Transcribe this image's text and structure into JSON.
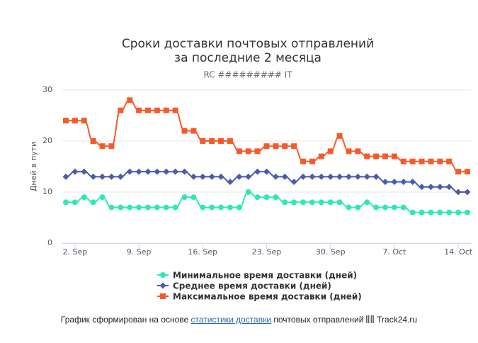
{
  "chart_data": {
    "type": "line",
    "title": [
      "Сроки доставки почтовых отправлений",
      "за последние 2 месяца"
    ],
    "subtitle": "RC ######### IT",
    "y_axis_label": "Дней в пути",
    "categories": [
      null,
      "2. Sep",
      null,
      null,
      null,
      null,
      null,
      null,
      "9. Sep",
      null,
      null,
      null,
      null,
      null,
      null,
      "16. Sep",
      null,
      null,
      null,
      null,
      null,
      null,
      "23. Sep",
      null,
      null,
      null,
      null,
      null,
      null,
      "30. Sep",
      null,
      null,
      null,
      null,
      null,
      null,
      "7. Oct",
      null,
      null,
      null,
      null,
      null,
      null,
      "14. Oct",
      null
    ],
    "series": [
      {
        "name": "Минимальное время доставки (дней)",
        "color": "#2ee8b6",
        "marker": "circle",
        "values": [
          8,
          8,
          9,
          8,
          9,
          7,
          7,
          7,
          7,
          7,
          7,
          7,
          7,
          9,
          9,
          7,
          7,
          7,
          7,
          7,
          10,
          9,
          9,
          9,
          8,
          8,
          8,
          8,
          8,
          8,
          8,
          7,
          7,
          8,
          7,
          7,
          7,
          7,
          6,
          6,
          6,
          6,
          6,
          6,
          6
        ]
      },
      {
        "name": "Среднее время доставки (дней)",
        "color": "#4a5cab",
        "marker": "diamond",
        "values": [
          13,
          14,
          14,
          13,
          13,
          13,
          13,
          14,
          14,
          14,
          14,
          14,
          14,
          14,
          13,
          13,
          13,
          13,
          12,
          13,
          13,
          14,
          14,
          13,
          13,
          12,
          13,
          13,
          13,
          13,
          13,
          13,
          13,
          13,
          13,
          12,
          12,
          12,
          12,
          11,
          11,
          11,
          11,
          10,
          10
        ]
      },
      {
        "name": "Максимальное время доставки (дней)",
        "color": "#f45b2a",
        "marker": "square",
        "values": [
          24,
          24,
          24,
          20,
          19,
          19,
          26,
          28,
          26,
          26,
          26,
          26,
          26,
          22,
          22,
          20,
          20,
          20,
          20,
          18,
          18,
          18,
          19,
          19,
          19,
          19,
          16,
          16,
          17,
          18,
          21,
          18,
          18,
          17,
          17,
          17,
          17,
          16,
          16,
          16,
          16,
          16,
          16,
          14,
          14
        ]
      }
    ],
    "ylim": [
      0,
      30
    ],
    "yticks": [
      0,
      10,
      20,
      30
    ],
    "grid": true
  },
  "footer": {
    "before": "График сформирован на основе",
    "link": "статистики доставки",
    "after": "почтовых отправлений",
    "site": "Track24.ru"
  }
}
